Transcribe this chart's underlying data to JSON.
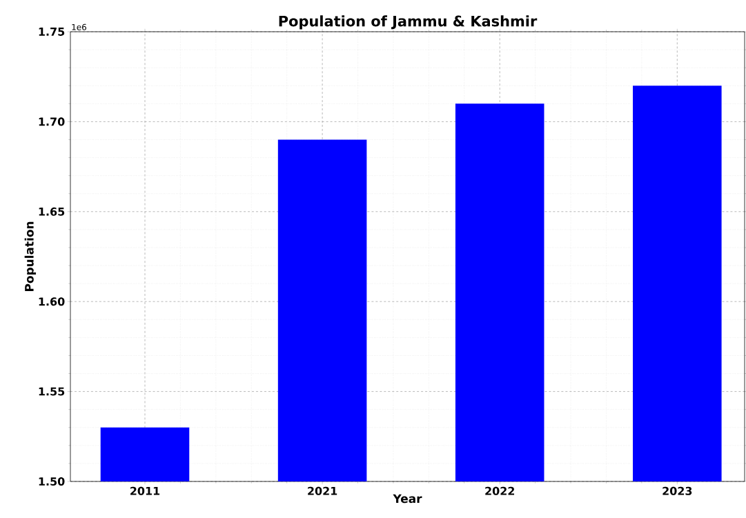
{
  "chart_data": {
    "type": "bar",
    "title": "Population of Jammu & Kashmir",
    "xlabel": "Year",
    "ylabel": "Population",
    "categories": [
      "2011",
      "2021",
      "2022",
      "2023"
    ],
    "values": [
      1.53,
      1.69,
      1.71,
      1.72
    ],
    "color": "#0000ff",
    "ylim": [
      1.5,
      1.75
    ],
    "yticks": [
      {
        "value": 1.5,
        "label": "1.50"
      },
      {
        "value": 1.55,
        "label": "1.55"
      },
      {
        "value": 1.6,
        "label": "1.60"
      },
      {
        "value": 1.65,
        "label": "1.65"
      },
      {
        "value": 1.7,
        "label": "1.70"
      },
      {
        "value": 1.75,
        "label": "1.75"
      }
    ],
    "grid": true,
    "annotations": [
      "1e6"
    ]
  }
}
